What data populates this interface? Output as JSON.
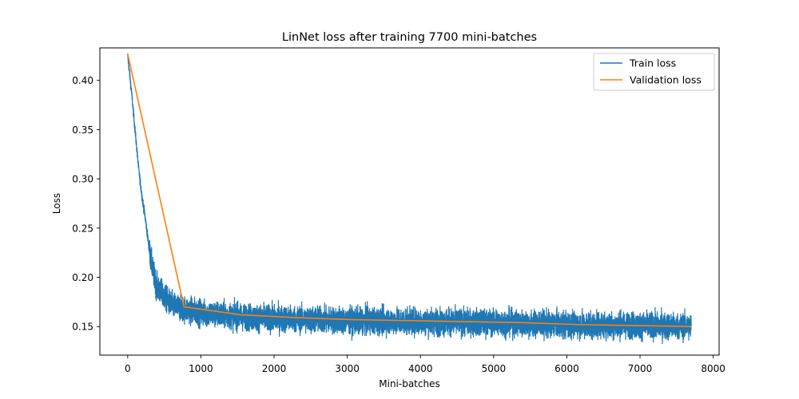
{
  "chart_data": {
    "type": "line",
    "title": "LinNet loss after training 7700 mini-batches",
    "xlabel": "Mini-batches",
    "ylabel": "Loss",
    "xlim": [
      -380,
      8080
    ],
    "ylim": [
      0.121,
      0.433
    ],
    "x_ticks": [
      0,
      1000,
      2000,
      3000,
      4000,
      5000,
      6000,
      7000,
      8000
    ],
    "y_ticks": [
      0.15,
      0.2,
      0.25,
      0.3,
      0.35,
      0.4
    ],
    "y_tick_labels": [
      "0.15",
      "0.20",
      "0.25",
      "0.30",
      "0.35",
      "0.40"
    ],
    "grid": false,
    "legend_position": "top-right",
    "series": [
      {
        "name": "Train loss",
        "color": "#1f77b4",
        "x_start": 0,
        "x_end": 7700,
        "approx_trend": [
          {
            "x": 0,
            "y": 0.425
          },
          {
            "x": 50,
            "y": 0.39
          },
          {
            "x": 100,
            "y": 0.35
          },
          {
            "x": 150,
            "y": 0.31
          },
          {
            "x": 200,
            "y": 0.28
          },
          {
            "x": 250,
            "y": 0.255
          },
          {
            "x": 300,
            "y": 0.225
          },
          {
            "x": 350,
            "y": 0.205
          },
          {
            "x": 400,
            "y": 0.19
          },
          {
            "x": 500,
            "y": 0.18
          },
          {
            "x": 600,
            "y": 0.172
          },
          {
            "x": 750,
            "y": 0.168
          },
          {
            "x": 1000,
            "y": 0.164
          },
          {
            "x": 1500,
            "y": 0.16
          },
          {
            "x": 2000,
            "y": 0.158
          },
          {
            "x": 3000,
            "y": 0.156
          },
          {
            "x": 4000,
            "y": 0.155
          },
          {
            "x": 5000,
            "y": 0.154
          },
          {
            "x": 6000,
            "y": 0.152
          },
          {
            "x": 7000,
            "y": 0.151
          },
          {
            "x": 7700,
            "y": 0.15
          }
        ],
        "noise_amplitude": 0.012
      },
      {
        "name": "Validation loss",
        "color": "#ff7f0e",
        "points": [
          {
            "x": 0,
            "y": 0.427
          },
          {
            "x": 770,
            "y": 0.17
          },
          {
            "x": 1540,
            "y": 0.162
          },
          {
            "x": 2310,
            "y": 0.159
          },
          {
            "x": 3080,
            "y": 0.157
          },
          {
            "x": 3850,
            "y": 0.156
          },
          {
            "x": 4620,
            "y": 0.155
          },
          {
            "x": 5390,
            "y": 0.154
          },
          {
            "x": 6160,
            "y": 0.152
          },
          {
            "x": 6930,
            "y": 0.151
          },
          {
            "x": 7700,
            "y": 0.15
          }
        ]
      }
    ]
  }
}
